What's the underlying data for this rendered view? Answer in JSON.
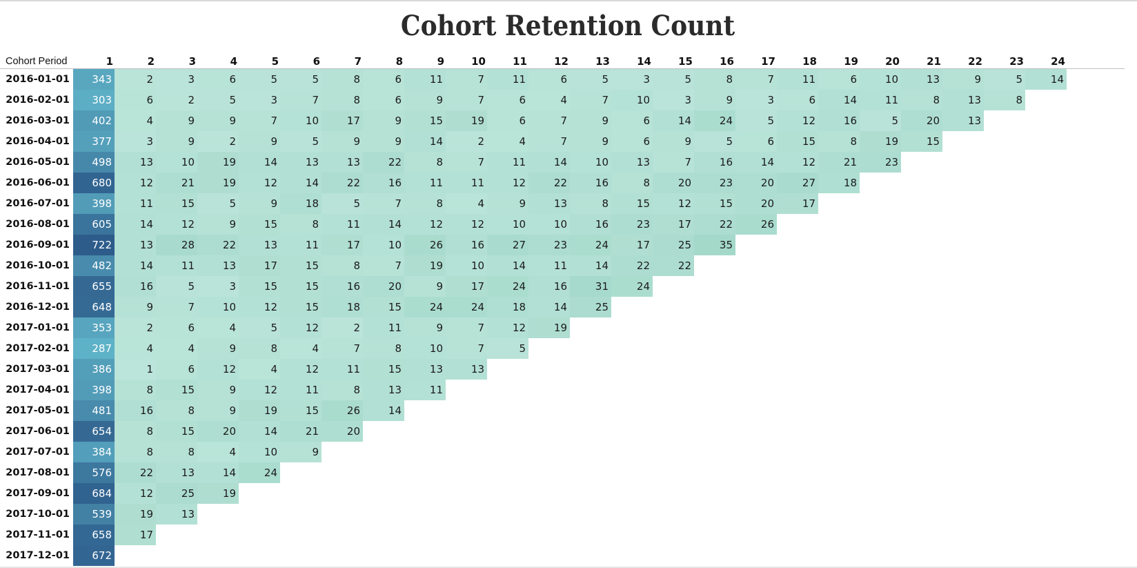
{
  "chart_data": {
    "type": "heatmap",
    "title": "Cohort Retention Count",
    "row_header": "Cohort Period",
    "columns": [
      "1",
      "2",
      "3",
      "4",
      "5",
      "6",
      "7",
      "8",
      "9",
      "10",
      "11",
      "12",
      "13",
      "14",
      "15",
      "16",
      "17",
      "18",
      "19",
      "20",
      "21",
      "22",
      "23",
      "24"
    ],
    "rows": [
      {
        "cohort": "2016-01-01",
        "values": [
          343,
          2,
          3,
          6,
          5,
          5,
          8,
          6,
          11,
          7,
          11,
          6,
          5,
          3,
          5,
          8,
          7,
          11,
          6,
          10,
          13,
          9,
          5,
          14
        ]
      },
      {
        "cohort": "2016-02-01",
        "values": [
          303,
          6,
          2,
          5,
          3,
          7,
          8,
          6,
          9,
          7,
          6,
          4,
          7,
          10,
          3,
          9,
          3,
          6,
          14,
          11,
          8,
          13,
          8
        ]
      },
      {
        "cohort": "2016-03-01",
        "values": [
          402,
          4,
          9,
          9,
          7,
          10,
          17,
          9,
          15,
          19,
          6,
          7,
          9,
          6,
          14,
          24,
          5,
          12,
          16,
          5,
          20,
          13
        ]
      },
      {
        "cohort": "2016-04-01",
        "values": [
          377,
          3,
          9,
          2,
          9,
          5,
          9,
          9,
          14,
          2,
          4,
          7,
          9,
          6,
          9,
          5,
          6,
          15,
          8,
          19,
          15
        ]
      },
      {
        "cohort": "2016-05-01",
        "values": [
          498,
          13,
          10,
          19,
          14,
          13,
          13,
          22,
          8,
          7,
          11,
          14,
          10,
          13,
          7,
          16,
          14,
          12,
          21,
          23
        ]
      },
      {
        "cohort": "2016-06-01",
        "values": [
          680,
          12,
          21,
          19,
          12,
          14,
          22,
          16,
          11,
          11,
          12,
          22,
          16,
          8,
          20,
          23,
          20,
          27,
          18
        ]
      },
      {
        "cohort": "2016-07-01",
        "values": [
          398,
          11,
          15,
          5,
          9,
          18,
          5,
          7,
          8,
          4,
          9,
          13,
          8,
          15,
          12,
          15,
          20,
          17
        ]
      },
      {
        "cohort": "2016-08-01",
        "values": [
          605,
          14,
          12,
          9,
          15,
          8,
          11,
          14,
          12,
          12,
          10,
          10,
          16,
          23,
          17,
          22,
          26
        ]
      },
      {
        "cohort": "2016-09-01",
        "values": [
          722,
          13,
          28,
          22,
          13,
          11,
          17,
          10,
          26,
          16,
          27,
          23,
          24,
          17,
          25,
          35
        ]
      },
      {
        "cohort": "2016-10-01",
        "values": [
          482,
          14,
          11,
          13,
          17,
          15,
          8,
          7,
          19,
          10,
          14,
          11,
          14,
          22,
          22
        ]
      },
      {
        "cohort": "2016-11-01",
        "values": [
          655,
          16,
          5,
          3,
          15,
          15,
          16,
          20,
          9,
          17,
          24,
          16,
          31,
          24
        ]
      },
      {
        "cohort": "2016-12-01",
        "values": [
          648,
          9,
          7,
          10,
          12,
          15,
          18,
          15,
          24,
          24,
          18,
          14,
          25
        ]
      },
      {
        "cohort": "2017-01-01",
        "values": [
          353,
          2,
          6,
          4,
          5,
          12,
          2,
          11,
          9,
          7,
          12,
          19
        ]
      },
      {
        "cohort": "2017-02-01",
        "values": [
          287,
          4,
          4,
          9,
          8,
          4,
          7,
          8,
          10,
          7,
          5
        ]
      },
      {
        "cohort": "2017-03-01",
        "values": [
          386,
          1,
          6,
          12,
          4,
          12,
          11,
          15,
          13,
          13
        ]
      },
      {
        "cohort": "2017-04-01",
        "values": [
          398,
          8,
          15,
          9,
          12,
          11,
          8,
          13,
          11
        ]
      },
      {
        "cohort": "2017-05-01",
        "values": [
          481,
          16,
          8,
          9,
          19,
          15,
          26,
          14
        ]
      },
      {
        "cohort": "2017-06-01",
        "values": [
          654,
          8,
          15,
          20,
          14,
          21,
          20
        ]
      },
      {
        "cohort": "2017-07-01",
        "values": [
          384,
          8,
          8,
          4,
          10,
          9
        ]
      },
      {
        "cohort": "2017-08-01",
        "values": [
          576,
          22,
          13,
          14,
          24
        ]
      },
      {
        "cohort": "2017-09-01",
        "values": [
          684,
          12,
          25,
          19
        ]
      },
      {
        "cohort": "2017-10-01",
        "values": [
          539,
          19,
          13
        ]
      },
      {
        "cohort": "2017-11-01",
        "values": [
          658,
          17
        ]
      },
      {
        "cohort": "2017-12-01",
        "values": [
          672
        ]
      }
    ],
    "color_range": [
      0,
      722
    ],
    "colors": {
      "low": "#b7e3d7",
      "high": "#2c5a8a"
    },
    "legend": "none",
    "grid": false
  }
}
